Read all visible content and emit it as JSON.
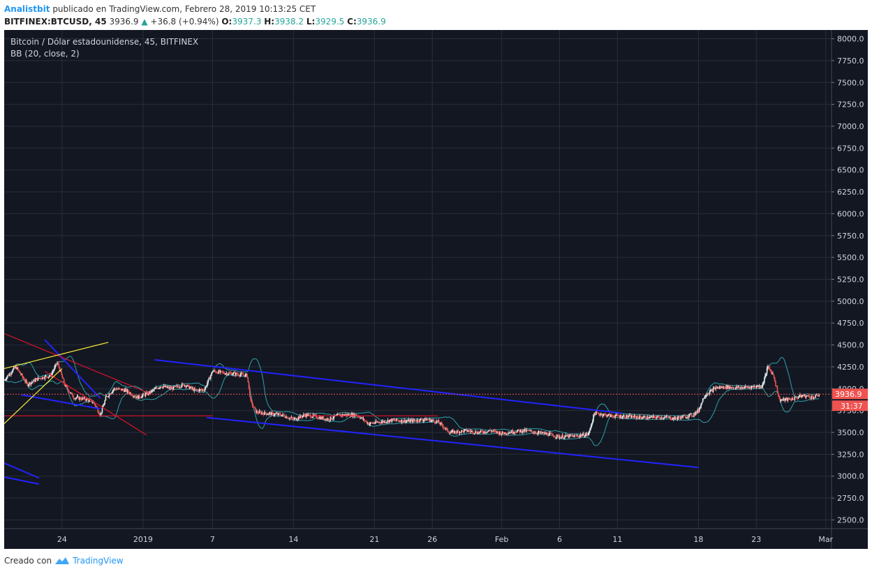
{
  "header": {
    "author": "Analistbit",
    "published": "publicado en TradingView.com, Febrero 28, 2019 10:13:25 CET",
    "symbol": "BITFINEX:BTCUSD, 45",
    "price": "3936.9",
    "change": "+36.8 (+0.94%)",
    "o_label": "O:",
    "o_value": "3937.3",
    "h_label": "H:",
    "h_value": "3938.2",
    "l_label": "L:",
    "l_value": "3929.5",
    "c_label": "C:",
    "c_value": "3936.9"
  },
  "legend": {
    "title": "Bitcoin / Dólar estadounidense, 45, BITFINEX",
    "indicator": "BB (20, close, 2)"
  },
  "price_tag": "3936.9",
  "countdown_tag": "31:37",
  "footer": {
    "created": "Creado con",
    "brand": "TradingView"
  },
  "colors": {
    "background": "#131722",
    "grid": "#2a2e39",
    "axis_text": "#d1d4dc",
    "price_tag": "#ef5350",
    "trend_blue": "#2323ff",
    "trend_red": "#e0132a",
    "trend_yellow": "#ffee3a",
    "bb_band": "#2ea3a9",
    "candle_up": "#e8e8e8",
    "candle_down": "#ef5350"
  },
  "chart_data": {
    "type": "candlestick",
    "ylim": [
      2400,
      8100
    ],
    "y_ticks": [
      2500,
      2750,
      3000,
      3250,
      3500,
      3750,
      4000,
      4250,
      4500,
      4750,
      5000,
      5250,
      5500,
      5750,
      6000,
      6250,
      6500,
      6750,
      7000,
      7250,
      7500,
      7750,
      8000
    ],
    "x_range": [
      0,
      71.5
    ],
    "x_ticks": [
      {
        "x": 5,
        "label": "24"
      },
      {
        "x": 12,
        "label": "2019"
      },
      {
        "x": 18,
        "label": "7"
      },
      {
        "x": 25,
        "label": "14"
      },
      {
        "x": 32,
        "label": "21"
      },
      {
        "x": 37,
        "label": "26"
      },
      {
        "x": 43,
        "label": "Feb"
      },
      {
        "x": 48,
        "label": "6"
      },
      {
        "x": 53,
        "label": "11"
      },
      {
        "x": 60,
        "label": "18"
      },
      {
        "x": 65,
        "label": "23"
      },
      {
        "x": 71,
        "label": "Mar"
      }
    ],
    "last_price": 3936.9,
    "price_path": [
      [
        0,
        4100
      ],
      [
        1,
        4250
      ],
      [
        2,
        4050
      ],
      [
        3,
        4120
      ],
      [
        4,
        4150
      ],
      [
        4.6,
        4300
      ],
      [
        5.2,
        4050
      ],
      [
        6,
        3900
      ],
      [
        7,
        3880
      ],
      [
        7.7,
        3850
      ],
      [
        8.3,
        3700
      ],
      [
        8.8,
        3900
      ],
      [
        9.5,
        4000
      ],
      [
        10.5,
        3980
      ],
      [
        11.5,
        3900
      ],
      [
        12.5,
        3950
      ],
      [
        13.5,
        4030
      ],
      [
        14.5,
        4000
      ],
      [
        15.5,
        4050
      ],
      [
        16.5,
        3980
      ],
      [
        17.3,
        3990
      ],
      [
        18,
        4200
      ],
      [
        19,
        4180
      ],
      [
        20,
        4170
      ],
      [
        21,
        4150
      ],
      [
        21.3,
        3850
      ],
      [
        21.8,
        3730
      ],
      [
        22.5,
        3720
      ],
      [
        24,
        3700
      ],
      [
        25,
        3650
      ],
      [
        26,
        3700
      ],
      [
        27,
        3680
      ],
      [
        28,
        3650
      ],
      [
        29,
        3700
      ],
      [
        30.5,
        3700
      ],
      [
        31.5,
        3600
      ],
      [
        32.5,
        3620
      ],
      [
        33.5,
        3640
      ],
      [
        35,
        3630
      ],
      [
        36.5,
        3650
      ],
      [
        37.5,
        3620
      ],
      [
        38.5,
        3500
      ],
      [
        40,
        3520
      ],
      [
        41,
        3500
      ],
      [
        42,
        3520
      ],
      [
        43,
        3490
      ],
      [
        44,
        3510
      ],
      [
        45,
        3520
      ],
      [
        46,
        3500
      ],
      [
        47,
        3480
      ],
      [
        48,
        3450
      ],
      [
        49.5,
        3460
      ],
      [
        50.5,
        3480
      ],
      [
        51,
        3720
      ],
      [
        52.5,
        3690
      ],
      [
        54,
        3680
      ],
      [
        55.5,
        3670
      ],
      [
        57,
        3675
      ],
      [
        58,
        3660
      ],
      [
        59.5,
        3700
      ],
      [
        60,
        3750
      ],
      [
        60.5,
        3920
      ],
      [
        61.5,
        4010
      ],
      [
        62.5,
        4020
      ],
      [
        63.5,
        4010
      ],
      [
        64.5,
        4020
      ],
      [
        65.5,
        4030
      ],
      [
        66,
        4250
      ],
      [
        66.5,
        4150
      ],
      [
        67,
        3870
      ],
      [
        68,
        3880
      ],
      [
        69,
        3920
      ],
      [
        70,
        3900
      ],
      [
        70.5,
        3936.9
      ]
    ],
    "trendlines": [
      {
        "color": "blue",
        "points": [
          [
            13,
            4330
          ],
          [
            53.4,
            3720
          ]
        ]
      },
      {
        "color": "blue",
        "points": [
          [
            17.5,
            3670
          ],
          [
            60,
            3100
          ]
        ]
      },
      {
        "color": "blue",
        "points": [
          [
            0,
            3150
          ],
          [
            3,
            2980
          ]
        ]
      },
      {
        "color": "blue",
        "points": [
          [
            0,
            2990
          ],
          [
            3,
            2910
          ]
        ]
      },
      {
        "color": "blue",
        "points": [
          [
            3.5,
            4560
          ],
          [
            8.3,
            3890
          ]
        ]
      },
      {
        "color": "blue",
        "points": [
          [
            1.5,
            3930
          ],
          [
            8.3,
            3770
          ]
        ]
      },
      {
        "color": "red",
        "points": [
          [
            0,
            4630
          ],
          [
            12.5,
            3950
          ]
        ]
      },
      {
        "color": "red",
        "points": [
          [
            3.5,
            4200
          ],
          [
            12.3,
            3470
          ]
        ]
      },
      {
        "color": "red",
        "points": [
          [
            0,
            3690
          ],
          [
            18,
            3690
          ]
        ]
      },
      {
        "color": "red",
        "points": [
          [
            26.5,
            3690
          ],
          [
            37.5,
            3690
          ]
        ]
      },
      {
        "color": "yellow",
        "points": [
          [
            0,
            4230
          ],
          [
            9,
            4530
          ]
        ]
      },
      {
        "color": "yellow",
        "points": [
          [
            0,
            3600
          ],
          [
            5,
            4230
          ]
        ]
      }
    ]
  }
}
